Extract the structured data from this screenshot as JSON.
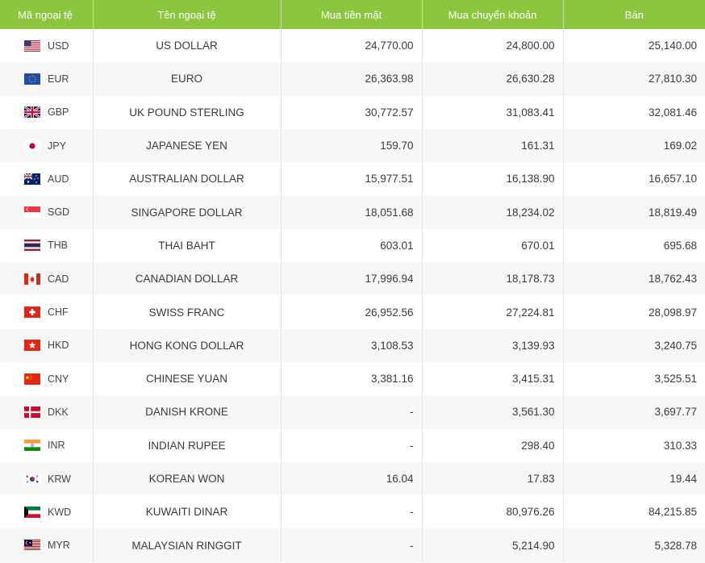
{
  "header": {
    "code": "Mã ngoại tệ",
    "name": "Tên ngoại tệ",
    "cash_buy": "Mua tiền mặt",
    "transfer_buy": "Mua chuyển khoản",
    "sell": "Bán"
  },
  "colors": {
    "header_bg": "#8cc63f",
    "stripe": "#f7f7f7"
  },
  "rows": [
    {
      "code": "USD",
      "name": "US DOLLAR",
      "cash": "24,770.00",
      "transfer": "24,800.00",
      "sell": "25,140.00",
      "flag": "us-flag-icon"
    },
    {
      "code": "EUR",
      "name": "EURO",
      "cash": "26,363.98",
      "transfer": "26,630.28",
      "sell": "27,810.30",
      "flag": "eu-flag-icon"
    },
    {
      "code": "GBP",
      "name": "UK POUND STERLING",
      "cash": "30,772.57",
      "transfer": "31,083.41",
      "sell": "32,081.46",
      "flag": "gb-flag-icon"
    },
    {
      "code": "JPY",
      "name": "JAPANESE YEN",
      "cash": "159.70",
      "transfer": "161.31",
      "sell": "169.02",
      "flag": "jp-flag-icon"
    },
    {
      "code": "AUD",
      "name": "AUSTRALIAN DOLLAR",
      "cash": "15,977.51",
      "transfer": "16,138.90",
      "sell": "16,657.10",
      "flag": "au-flag-icon"
    },
    {
      "code": "SGD",
      "name": "SINGAPORE DOLLAR",
      "cash": "18,051.68",
      "transfer": "18,234.02",
      "sell": "18,819.49",
      "flag": "sg-flag-icon"
    },
    {
      "code": "THB",
      "name": "THAI BAHT",
      "cash": "603.01",
      "transfer": "670.01",
      "sell": "695.68",
      "flag": "th-flag-icon"
    },
    {
      "code": "CAD",
      "name": "CANADIAN DOLLAR",
      "cash": "17,996.94",
      "transfer": "18,178.73",
      "sell": "18,762.43",
      "flag": "ca-flag-icon"
    },
    {
      "code": "CHF",
      "name": "SWISS FRANC",
      "cash": "26,952.56",
      "transfer": "27,224.81",
      "sell": "28,098.97",
      "flag": "ch-flag-icon"
    },
    {
      "code": "HKD",
      "name": "HONG KONG DOLLAR",
      "cash": "3,108.53",
      "transfer": "3,139.93",
      "sell": "3,240.75",
      "flag": "hk-flag-icon"
    },
    {
      "code": "CNY",
      "name": "CHINESE YUAN",
      "cash": "3,381.16",
      "transfer": "3,415.31",
      "sell": "3,525.51",
      "flag": "cn-flag-icon"
    },
    {
      "code": "DKK",
      "name": "DANISH KRONE",
      "cash": "-",
      "transfer": "3,561.30",
      "sell": "3,697.77",
      "flag": "dk-flag-icon"
    },
    {
      "code": "INR",
      "name": "INDIAN RUPEE",
      "cash": "-",
      "transfer": "298.40",
      "sell": "310.33",
      "flag": "in-flag-icon"
    },
    {
      "code": "KRW",
      "name": "KOREAN WON",
      "cash": "16.04",
      "transfer": "17.83",
      "sell": "19.44",
      "flag": "kr-flag-icon"
    },
    {
      "code": "KWD",
      "name": "KUWAITI DINAR",
      "cash": "-",
      "transfer": "80,976.26",
      "sell": "84,215.85",
      "flag": "kw-flag-icon"
    },
    {
      "code": "MYR",
      "name": "MALAYSIAN RINGGIT",
      "cash": "-",
      "transfer": "5,214.90",
      "sell": "5,328.78",
      "flag": "my-flag-icon"
    }
  ]
}
